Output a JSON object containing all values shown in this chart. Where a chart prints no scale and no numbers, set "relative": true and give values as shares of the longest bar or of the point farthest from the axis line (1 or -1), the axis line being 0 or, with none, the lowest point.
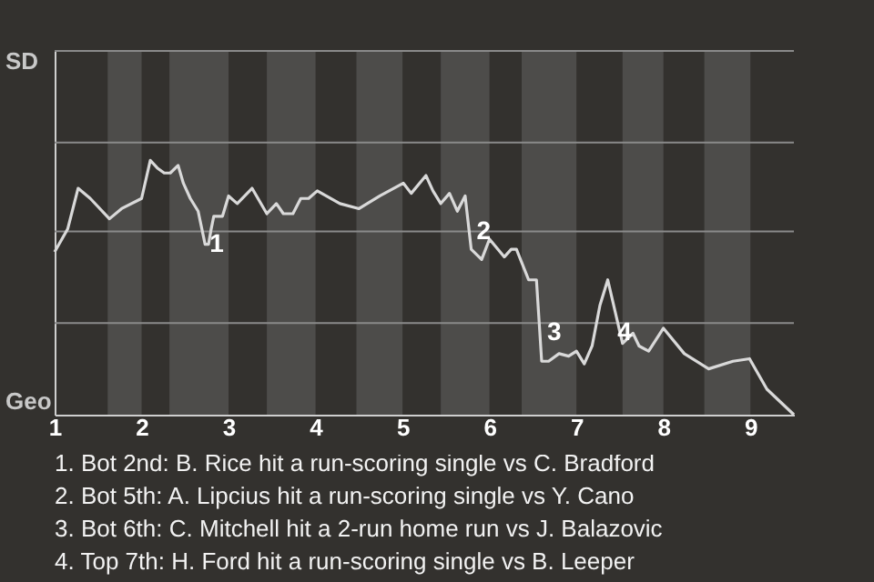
{
  "chart_data": {
    "type": "line",
    "relative": true,
    "xlim": [
      1,
      9.5
    ],
    "xticks": [
      1,
      2,
      3,
      4,
      5,
      6,
      7,
      8,
      9
    ],
    "marker": "none",
    "line_style": "solid",
    "ref_lines": [
      {
        "axis": "y",
        "value": 0.36,
        "color": "#8a8a8a"
      },
      {
        "axis": "y",
        "value": 0.72,
        "color": "#8a8a8a"
      },
      {
        "axis": "y",
        "value": 1.07,
        "color": "#8a8a8a"
      },
      {
        "axis": "y",
        "value": 1.43,
        "color": "#8a8a8a"
      }
    ],
    "series": [
      {
        "color": "#d9d9d9",
        "x": [
          1,
          1.15,
          1.27,
          1.41,
          1.63,
          1.77,
          2,
          2.1,
          2.18,
          2.26,
          2.33,
          2.42,
          2.48,
          2.56,
          2.65,
          2.73,
          2.77,
          2.8,
          2.83,
          2.93,
          3,
          3.1,
          3.27,
          3.44,
          3.55,
          3.63,
          3.74,
          3.83,
          3.92,
          4.02,
          4.28,
          4.5,
          4.74,
          5.01,
          5.1,
          5.27,
          5.35,
          5.44,
          5.54,
          5.63,
          5.72,
          5.79,
          5.91,
          6,
          6.17,
          6.25,
          6.31,
          6.45,
          6.54,
          6.6,
          6.68,
          6.8,
          6.91,
          7,
          7.09,
          7.18,
          7.27,
          7.36,
          7.53,
          7.65,
          7.72,
          7.83,
          8,
          8.24,
          8.52,
          8.8,
          8.99,
          9.19,
          9.5
        ],
        "values": [
          0.64,
          0.73,
          0.89,
          0.85,
          0.77,
          0.81,
          0.85,
          1,
          0.97,
          0.95,
          0.95,
          0.98,
          0.91,
          0.85,
          0.8,
          0.67,
          0.67,
          0.73,
          0.78,
          0.78,
          0.86,
          0.83,
          0.89,
          0.79,
          0.83,
          0.79,
          0.79,
          0.85,
          0.85,
          0.88,
          0.83,
          0.81,
          0.86,
          0.91,
          0.87,
          0.94,
          0.88,
          0.83,
          0.87,
          0.8,
          0.86,
          0.65,
          0.61,
          0.69,
          0.62,
          0.65,
          0.65,
          0.53,
          0.53,
          0.21,
          0.21,
          0.24,
          0.23,
          0.25,
          0.2,
          0.27,
          0.43,
          0.53,
          0.28,
          0.32,
          0.27,
          0.25,
          0.34,
          0.24,
          0.18,
          0.21,
          0.22,
          0.1,
          0
        ]
      }
    ],
    "bands": [
      {
        "axis": "x",
        "from": 1.61,
        "to": 2,
        "color": "#4d4c4a"
      },
      {
        "axis": "x",
        "from": 2.32,
        "to": 3,
        "color": "#4d4c4a"
      },
      {
        "axis": "x",
        "from": 3.44,
        "to": 4,
        "color": "#4d4c4a"
      },
      {
        "axis": "x",
        "from": 4.47,
        "to": 5,
        "color": "#4d4c4a"
      },
      {
        "axis": "x",
        "from": 5.44,
        "to": 6,
        "color": "#4d4c4a"
      },
      {
        "axis": "x",
        "from": 6.37,
        "to": 7,
        "color": "#4d4c4a"
      },
      {
        "axis": "x",
        "from": 7.53,
        "to": 8,
        "color": "#4d4c4a"
      },
      {
        "axis": "x",
        "from": 8.47,
        "to": 9,
        "color": "#4d4c4a"
      }
    ],
    "annotations": [
      "SD",
      "Geo",
      {
        "text": "1",
        "x": 2.78,
        "y": 0.67
      },
      {
        "text": "2",
        "x": 5.85,
        "y": 0.72
      },
      {
        "text": "3",
        "x": 6.66,
        "y": 0.32
      },
      {
        "text": "4",
        "x": 7.47,
        "y": 0.32
      },
      "1. Bot 2nd: B. Rice hit a run-scoring single vs C. Bradford",
      "2. Bot 5th: A. Lipcius hit a run-scoring single vs Y. Cano",
      "3. Bot 6th: C. Mitchell hit a 2-run home run vs J. Balazovic",
      "4. Top 7th: H. Ford hit a run-scoring single vs B. Leeper"
    ]
  }
}
